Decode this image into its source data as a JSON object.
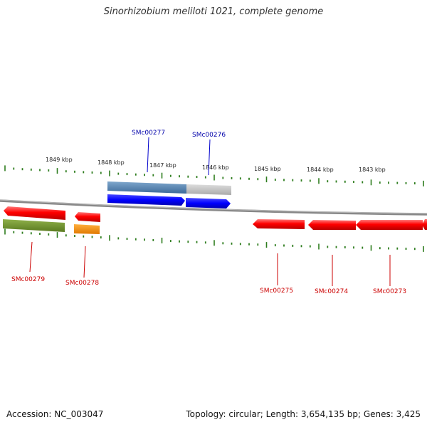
{
  "title": "Sinorhizobium meliloti 1021, complete genome",
  "footer": {
    "accession": "Accession: NC_003047",
    "topology": "Topology: circular; Length: 3,654,135 bp; Genes: 3,425"
  },
  "ticks": [
    {
      "label": "1849 kbp",
      "position_kbp": 1849
    },
    {
      "label": "1848 kbp",
      "position_kbp": 1848
    },
    {
      "label": "1847 kbp",
      "position_kbp": 1847
    },
    {
      "label": "1846 kbp",
      "position_kbp": 1846
    },
    {
      "label": "1845 kbp",
      "position_kbp": 1845
    },
    {
      "label": "1844 kbp",
      "position_kbp": 1844
    },
    {
      "label": "1843 kbp",
      "position_kbp": 1843
    }
  ],
  "genes": [
    {
      "name": "SMc00279",
      "strand": "reverse",
      "color": "#ee0000",
      "cog_color": "#6b8e23"
    },
    {
      "name": "SMc00278",
      "strand": "reverse",
      "color": "#ee0000",
      "cog_color": "#ff8c00"
    },
    {
      "name": "SMc00277",
      "strand": "forward",
      "color": "#0000ee",
      "cog_color": "#4682b4"
    },
    {
      "name": "SMc00276",
      "strand": "forward",
      "color": "#0000ee",
      "cog_color": "#c0c0c0"
    },
    {
      "name": "SMc00275",
      "strand": "reverse",
      "color": "#ee0000"
    },
    {
      "name": "SMc00274",
      "strand": "reverse",
      "color": "#ee0000"
    },
    {
      "name": "SMc00273",
      "strand": "reverse",
      "color": "#ee0000"
    }
  ],
  "colors": {
    "backbone": "#777777",
    "tick": "#2e7d1e",
    "forward_label": "#0000aa",
    "reverse_label": "#cc0000"
  }
}
